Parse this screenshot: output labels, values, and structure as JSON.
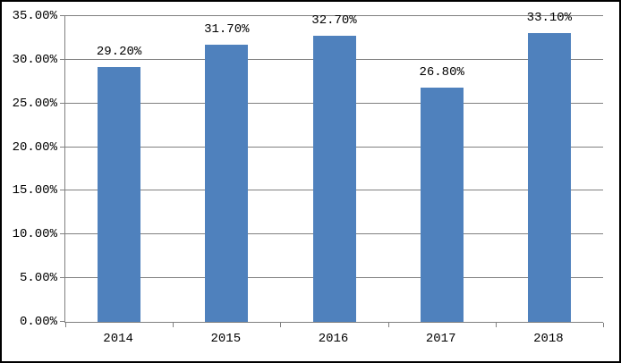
{
  "chart_data": {
    "type": "bar",
    "categories": [
      "2014",
      "2015",
      "2016",
      "2017",
      "2018"
    ],
    "values": [
      29.2,
      31.7,
      32.7,
      26.8,
      33.1
    ],
    "data_labels": [
      "29.20%",
      "31.70%",
      "32.70%",
      "26.80%",
      "33.10%"
    ],
    "y_tick_labels": [
      "0.00%",
      "5.00%",
      "10.00%",
      "15.00%",
      "20.00%",
      "25.00%",
      "30.00%",
      "35.00%"
    ],
    "y_tick_values": [
      0,
      5,
      10,
      15,
      20,
      25,
      30,
      35
    ],
    "ylim": [
      0,
      35
    ],
    "title": "",
    "xlabel": "",
    "ylabel": "",
    "grid": true,
    "legend_position": "none",
    "data_label_position": "outside-end",
    "bar_color": "#4F81BD",
    "gridline_color": "#808080",
    "axis_color": "#808080",
    "text_color": "#000000",
    "frame_border_color": "#000000",
    "background_color": "#FFFFFF"
  }
}
